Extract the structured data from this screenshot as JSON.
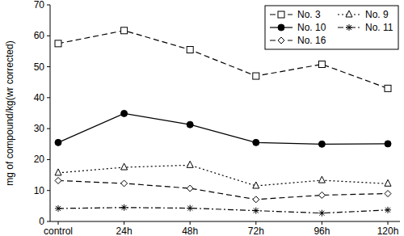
{
  "chart_data": {
    "type": "line",
    "y_label": "mg of compound/kg(wr corrected)",
    "categories": [
      "control",
      "24h",
      "48h",
      "72h",
      "96h",
      "120h"
    ],
    "series": [
      {
        "name": "No. 3",
        "color": "#000000",
        "marker": "square",
        "line_style": "dashed",
        "values": [
          57.5,
          61.7,
          55.5,
          47.0,
          50.8,
          43.0
        ]
      },
      {
        "name": "No. 9",
        "color": "#000000",
        "marker": "triangle",
        "line_style": "dotted",
        "values": [
          15.7,
          17.5,
          18.2,
          11.5,
          13.3,
          12.2
        ]
      },
      {
        "name": "No. 10",
        "color": "#000000",
        "marker": "circle",
        "line_style": "solid",
        "values": [
          25.5,
          34.9,
          31.3,
          25.5,
          25.0,
          25.1
        ]
      },
      {
        "name": "No. 11",
        "color": "#000000",
        "marker": "asterisk",
        "line_style": "dashdot",
        "values": [
          4.2,
          4.5,
          4.3,
          3.5,
          2.7,
          3.7
        ]
      },
      {
        "name": "No. 16",
        "color": "#000000",
        "marker": "diamond",
        "line_style": "dashed",
        "values": [
          13.2,
          12.3,
          10.7,
          7.1,
          8.5,
          9.0
        ]
      }
    ],
    "ylim": [
      0,
      70
    ],
    "yticks": [
      0,
      10,
      20,
      30,
      40,
      50,
      60,
      70
    ],
    "grid": false,
    "legend": "upper right"
  }
}
